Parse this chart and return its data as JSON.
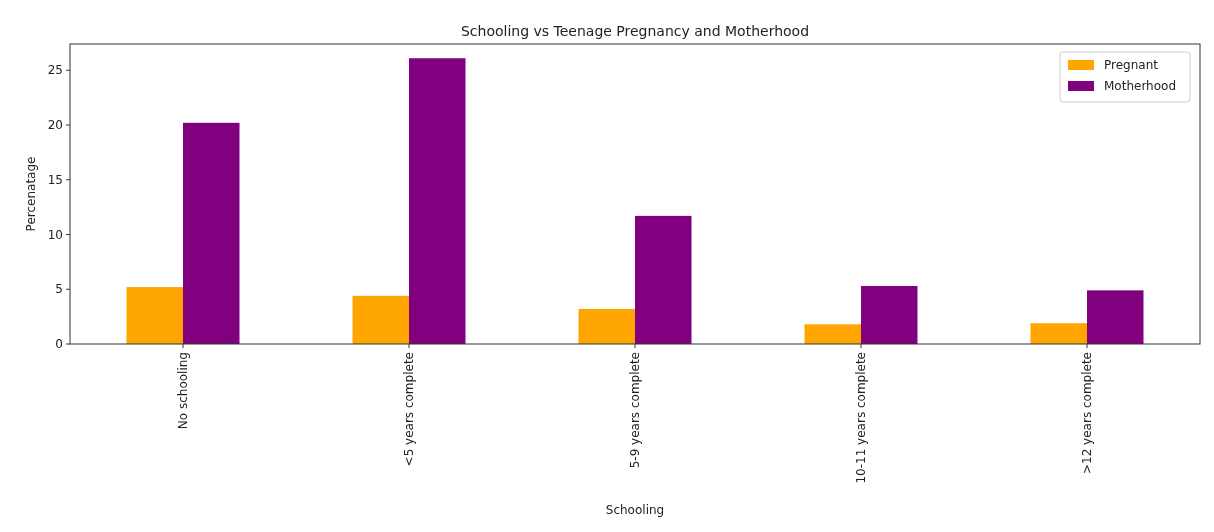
{
  "chart_data": {
    "type": "bar",
    "title": "Schooling vs Teenage Pregnancy and Motherhood",
    "xlabel": "Schooling",
    "ylabel": "Percenatage",
    "categories": [
      "No schooling",
      "<5 years complete",
      "5-9 years complete",
      "10-11 years complete",
      ">12 years complete"
    ],
    "series": [
      {
        "name": "Pregnant",
        "color": "#ffa500",
        "values": [
          5.2,
          4.4,
          3.2,
          1.8,
          1.9
        ]
      },
      {
        "name": "Motherhood",
        "color": "#800080",
        "values": [
          20.2,
          26.1,
          11.7,
          5.3,
          4.9
        ]
      }
    ],
    "ylim": [
      0,
      27.4
    ],
    "yticks": [
      0,
      5,
      10,
      15,
      20,
      25
    ],
    "grid": false,
    "legend": "top right"
  }
}
